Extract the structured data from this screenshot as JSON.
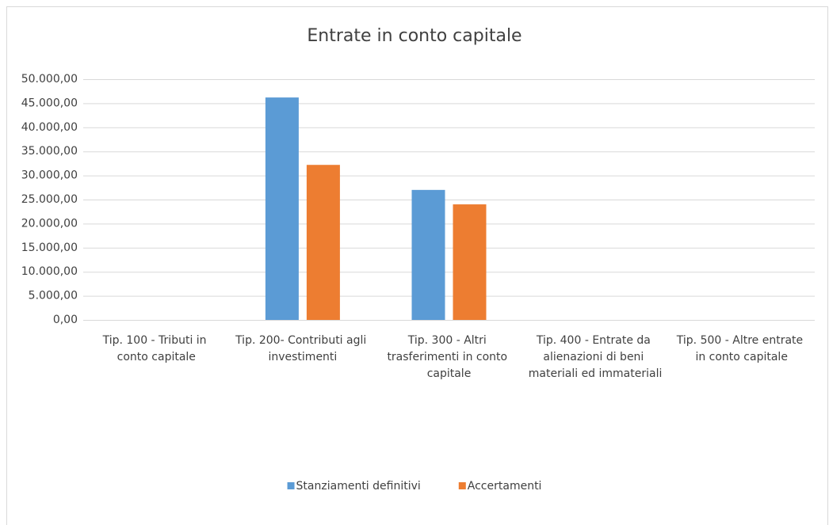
{
  "chart_data": {
    "type": "bar",
    "title": "Entrate in conto capitale",
    "categories": [
      "Tip. 100 - Tributi in conto capitale",
      "Tip. 200- Contributi agli investimenti",
      "Tip. 300 - Altri trasferimenti in conto capitale",
      "Tip. 400 - Entrate da alienazioni di beni materiali ed immateriali",
      "Tip. 500 - Altre entrate in conto capitale"
    ],
    "series": [
      {
        "name": "Stanziamenti definitivi",
        "color": "#5b9bd5",
        "values": [
          0,
          46200,
          27000,
          0,
          0
        ]
      },
      {
        "name": "Accertamenti",
        "color": "#ed7d31",
        "values": [
          0,
          32200,
          24000,
          0,
          0
        ]
      }
    ],
    "ylim": [
      0,
      50000
    ],
    "yticks": [
      {
        "value": 0,
        "label": "0,00"
      },
      {
        "value": 5000,
        "label": "5.000,00"
      },
      {
        "value": 10000,
        "label": "10.000,00"
      },
      {
        "value": 15000,
        "label": "15.000,00"
      },
      {
        "value": 20000,
        "label": "20.000,00"
      },
      {
        "value": 25000,
        "label": "25.000,00"
      },
      {
        "value": 30000,
        "label": "30.000,00"
      },
      {
        "value": 35000,
        "label": "35.000,00"
      },
      {
        "value": 40000,
        "label": "40.000,00"
      },
      {
        "value": 45000,
        "label": "45.000,00"
      },
      {
        "value": 50000,
        "label": "50.000,00"
      }
    ],
    "grid": true,
    "legend": "bottom"
  }
}
